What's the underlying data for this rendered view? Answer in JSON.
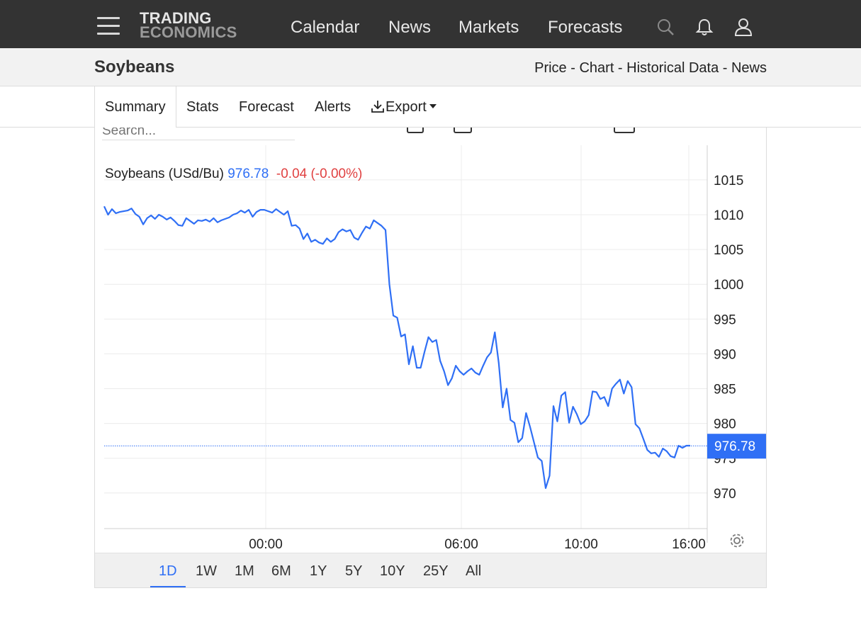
{
  "navbar": {
    "logo_line1": "TRADING",
    "logo_line2": "ECONOMICS",
    "links": [
      "Calendar",
      "News",
      "Markets",
      "Forecasts"
    ],
    "icons": [
      "menu-icon",
      "search-icon",
      "bell-icon",
      "user-icon"
    ]
  },
  "subheader": {
    "title": "Soybeans",
    "crumbs": [
      "Price",
      "Chart",
      "Historical Data",
      "News"
    ],
    "separator": " - "
  },
  "tabs": {
    "summary": "Summary",
    "stats": "Stats",
    "forecast": "Forecast",
    "alerts": "Alerts",
    "export": "Export"
  },
  "chart_toolbar": {
    "search_placeholder": "Search..."
  },
  "legend": {
    "name": "Soybeans (USd/Bu)",
    "price": "976.78",
    "change": "-0.04 (-0.00%)"
  },
  "colors": {
    "navbar_bg": "#333333",
    "line": "#2f6ff5",
    "negative": "#e04141",
    "last_price_badge": "#2f6ff5"
  },
  "range_buttons": [
    "1D",
    "1W",
    "1M",
    "6M",
    "1Y",
    "5Y",
    "10Y",
    "25Y",
    "All"
  ],
  "range_active": "1D",
  "chart_data": {
    "type": "line",
    "title": "Soybeans (USd/Bu)",
    "last_value": 976.78,
    "last_label": "976.78",
    "x_ticks": [
      "00:00",
      "06:00",
      "10:00",
      "16:00"
    ],
    "y_ticks": [
      970,
      975,
      980,
      985,
      990,
      995,
      1000,
      1005,
      1010,
      1015
    ],
    "ylim": [
      965,
      1019
    ],
    "grid": true,
    "series": [
      {
        "values": [
          1011.2,
          1010.0,
          1010.8,
          1010.2,
          1010.4,
          1010.5,
          1010.6,
          1010.9,
          1010.1,
          1009.7,
          1008.6,
          1009.5,
          1009.9,
          1009.4,
          1010.0,
          1009.7,
          1009.3,
          1009.6,
          1009.1,
          1008.5,
          1008.4,
          1009.5,
          1009.1,
          1008.7,
          1009.2,
          1009.1,
          1009.3,
          1009.0,
          1009.5,
          1008.9,
          1009.2,
          1009.4,
          1009.6,
          1010.0,
          1010.2,
          1010.6,
          1010.3,
          1010.7,
          1009.7,
          1010.4,
          1010.7,
          1010.7,
          1010.5,
          1010.3,
          1010.8,
          1010.4,
          1010.0,
          1010.5,
          1008.4,
          1008.5,
          1008.0,
          1006.5,
          1007.3,
          1006.1,
          1006.4,
          1006.0,
          1005.8,
          1006.6,
          1006.1,
          1006.5,
          1007.5,
          1007.9,
          1007.6,
          1007.8,
          1006.7,
          1006.4,
          1007.4,
          1008.3,
          1008.0,
          1009.2,
          1008.8,
          1008.4,
          1007.8,
          1000.0,
          995.5,
          995.2,
          992.5,
          992.8,
          988.5,
          991.1,
          988.0,
          988.0,
          990.3,
          992.4,
          991.7,
          992.0,
          989.0,
          987.5,
          985.5,
          986.5,
          988.3,
          987.5,
          987.0,
          987.5,
          987.9,
          987.3,
          987.0,
          988.3,
          989.5,
          990.2,
          993.1,
          988.7,
          982.3,
          985.0,
          980.5,
          980.1,
          977.3,
          977.9,
          981.5,
          979.5,
          977.3,
          975.1,
          974.6,
          970.7,
          972.5,
          982.5,
          980.3,
          984.0,
          984.5,
          980.1,
          982.4,
          981.3,
          979.9,
          980.3,
          981.2,
          984.6,
          984.5,
          983.5,
          983.8,
          982.5,
          985.0,
          985.7,
          986.3,
          984.3,
          986.1,
          985.2,
          979.9,
          979.3,
          977.8,
          976.2,
          975.7,
          975.8,
          975.2,
          976.4,
          976.0,
          975.3,
          975.1,
          976.8,
          976.5,
          976.8,
          976.8
        ]
      }
    ]
  }
}
